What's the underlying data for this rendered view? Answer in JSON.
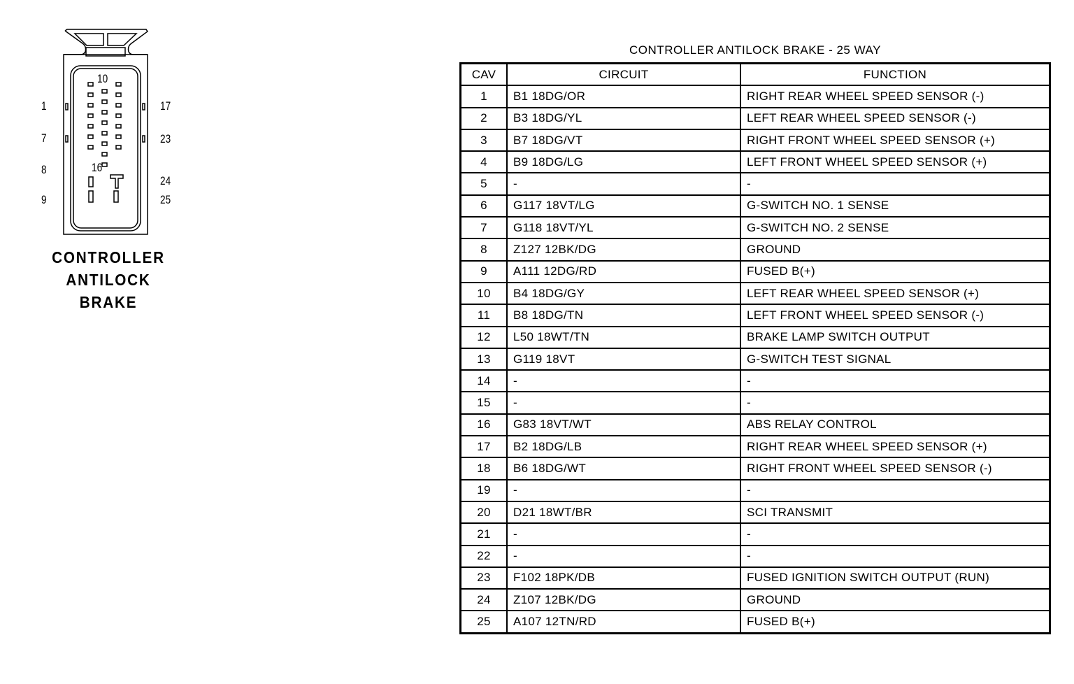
{
  "connector": {
    "caption": [
      "CONTROLLER",
      "ANTILOCK",
      "BRAKE"
    ],
    "pin_labels": {
      "p1": "1",
      "p7": "7",
      "p8": "8",
      "p9": "9",
      "p10": "10",
      "p16": "16",
      "p17": "17",
      "p23": "23",
      "p24": "24",
      "p25": "25"
    }
  },
  "table": {
    "title": "CONTROLLER ANTILOCK BRAKE - 25 WAY",
    "headers": [
      "CAV",
      "CIRCUIT",
      "FUNCTION"
    ],
    "rows": [
      [
        "1",
        "B1 18DG/OR",
        "RIGHT REAR WHEEL SPEED SENSOR (-)"
      ],
      [
        "2",
        "B3 18DG/YL",
        "LEFT REAR WHEEL SPEED SENSOR (-)"
      ],
      [
        "3",
        "B7 18DG/VT",
        "RIGHT FRONT WHEEL SPEED SENSOR (+)"
      ],
      [
        "4",
        "B9 18DG/LG",
        "LEFT FRONT WHEEL SPEED SENSOR (+)"
      ],
      [
        "5",
        "-",
        "-"
      ],
      [
        "6",
        "G117 18VT/LG",
        "G-SWITCH NO. 1 SENSE"
      ],
      [
        "7",
        "G118 18VT/YL",
        "G-SWITCH NO. 2 SENSE"
      ],
      [
        "8",
        "Z127 12BK/DG",
        "GROUND"
      ],
      [
        "9",
        "A111 12DG/RD",
        "FUSED B(+)"
      ],
      [
        "10",
        "B4 18DG/GY",
        "LEFT REAR WHEEL SPEED SENSOR (+)"
      ],
      [
        "11",
        "B8 18DG/TN",
        "LEFT FRONT WHEEL SPEED SENSOR (-)"
      ],
      [
        "12",
        "L50 18WT/TN",
        "BRAKE LAMP SWITCH OUTPUT"
      ],
      [
        "13",
        "G119 18VT",
        "G-SWITCH TEST SIGNAL"
      ],
      [
        "14",
        "-",
        "-"
      ],
      [
        "15",
        "-",
        "-"
      ],
      [
        "16",
        "G83 18VT/WT",
        "ABS RELAY CONTROL"
      ],
      [
        "17",
        "B2 18DG/LB",
        "RIGHT REAR WHEEL SPEED SENSOR (+)"
      ],
      [
        "18",
        "B6 18DG/WT",
        "RIGHT FRONT WHEEL SPEED SENSOR (-)"
      ],
      [
        "19",
        "-",
        "-"
      ],
      [
        "20",
        "D21 18WT/BR",
        "SCI TRANSMIT"
      ],
      [
        "21",
        "-",
        "-"
      ],
      [
        "22",
        "-",
        "-"
      ],
      [
        "23",
        "F102 18PK/DB",
        "FUSED IGNITION SWITCH OUTPUT (RUN)"
      ],
      [
        "24",
        "Z107 12BK/DG",
        "GROUND"
      ],
      [
        "25",
        "A107 12TN/RD",
        "FUSED B(+)"
      ]
    ]
  }
}
